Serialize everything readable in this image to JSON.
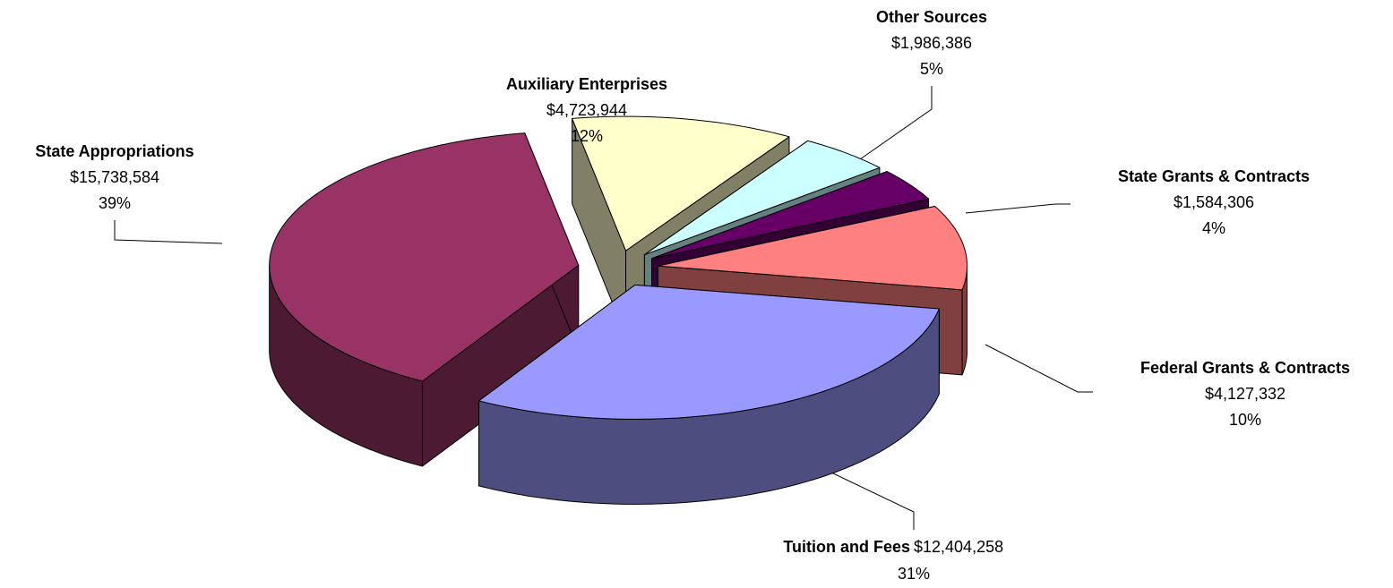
{
  "chart_data": {
    "type": "pie",
    "categories": [
      "Auxiliary Enterprises",
      "Other Sources",
      "State Grants & Contracts",
      "Federal Grants & Contracts",
      "Tuition and Fees",
      "State Appropriations"
    ],
    "values": [
      4723944,
      1986386,
      1584306,
      4127332,
      12404258,
      15738584
    ],
    "value_labels": [
      "$4,723,944",
      "$1,986,386",
      "$1,584,306",
      "$4,127,332",
      "$12,404,258",
      "$15,738,584"
    ],
    "percents": [
      12,
      5,
      4,
      10,
      31,
      39
    ],
    "percent_labels": [
      "12%",
      "5%",
      "4%",
      "10%",
      "31%",
      "39%"
    ],
    "colors": [
      "#ffffcc",
      "#ccffff",
      "#660066",
      "#ff8080",
      "#9999ff",
      "#993366"
    ]
  }
}
